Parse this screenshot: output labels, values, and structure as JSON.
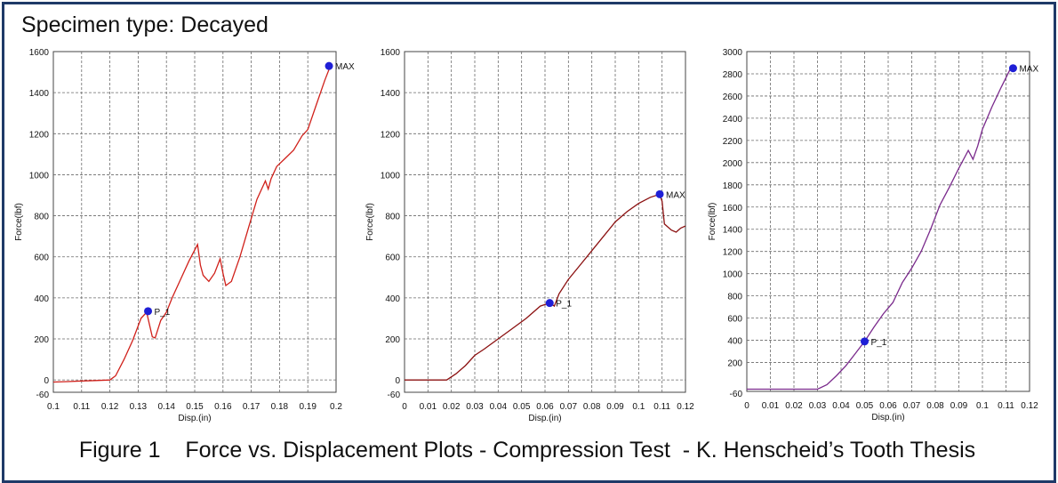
{
  "header": {
    "title": "Specimen type: Decayed"
  },
  "caption": {
    "text": "Figure 1    Force vs. Displacement Plots - Compression Test  - K. Henscheid’s Tooth Thesis"
  },
  "chart_data": [
    {
      "type": "line",
      "xlabel": "Disp.(in)",
      "ylabel": "Force(lbf)",
      "xlim": [
        0.1,
        0.2
      ],
      "ylim": [
        -60,
        1600
      ],
      "xticks": [
        "0.1",
        "0.11",
        "0.12",
        "0.13",
        "0.14",
        "0.15",
        "0.16",
        "0.17",
        "0.18",
        "0.19",
        "0.2"
      ],
      "yticks": [
        "-60",
        "0",
        "200",
        "400",
        "600",
        "800",
        "1000",
        "1200",
        "1400",
        "1600"
      ],
      "grid": true,
      "line_color": "#d0201a",
      "series": [
        {
          "x": [
            0.1,
            0.105,
            0.11,
            0.115,
            0.12,
            0.122,
            0.125,
            0.128,
            0.131,
            0.133,
            0.135,
            0.136,
            0.138,
            0.14,
            0.142,
            0.145,
            0.148,
            0.151,
            0.152,
            0.153,
            0.155,
            0.157,
            0.159,
            0.16,
            0.161,
            0.163,
            0.166,
            0.169,
            0.172,
            0.175,
            0.176,
            0.177,
            0.179,
            0.182,
            0.185,
            0.188,
            0.19,
            0.193,
            0.196,
            0.198
          ],
          "y": [
            -10,
            -8,
            -5,
            -3,
            0,
            20,
            100,
            190,
            300,
            330,
            210,
            205,
            290,
            330,
            400,
            490,
            580,
            660,
            560,
            510,
            480,
            520,
            590,
            520,
            460,
            480,
            600,
            740,
            880,
            970,
            930,
            980,
            1040,
            1080,
            1120,
            1190,
            1220,
            1340,
            1460,
            1530
          ]
        }
      ],
      "markers": [
        {
          "label": "P_1",
          "x": 0.1335,
          "y": 335
        },
        {
          "label": "MAX",
          "x": 0.1975,
          "y": 1530
        }
      ]
    },
    {
      "type": "line",
      "xlabel": "Disp.(in)",
      "ylabel": "Force(lbf)",
      "xlim": [
        0,
        0.12
      ],
      "ylim": [
        -60,
        1600
      ],
      "xticks": [
        "0",
        "0.01",
        "0.02",
        "0.03",
        "0.04",
        "0.05",
        "0.06",
        "0.07",
        "0.08",
        "0.09",
        "0.1",
        "0.11",
        "0.12"
      ],
      "yticks": [
        "-60",
        "0",
        "200",
        "400",
        "600",
        "800",
        "1000",
        "1200",
        "1400",
        "1600"
      ],
      "grid": true,
      "line_color": "#8b1010",
      "series": [
        {
          "x": [
            0,
            0.01,
            0.018,
            0.022,
            0.026,
            0.03,
            0.034,
            0.04,
            0.046,
            0.052,
            0.058,
            0.062,
            0.064,
            0.066,
            0.07,
            0.075,
            0.08,
            0.085,
            0.09,
            0.095,
            0.1,
            0.105,
            0.109,
            0.11,
            0.111,
            0.114,
            0.116,
            0.118,
            0.12
          ],
          "y": [
            0,
            0,
            0,
            30,
            70,
            120,
            150,
            200,
            250,
            300,
            360,
            375,
            360,
            420,
            490,
            560,
            630,
            700,
            770,
            820,
            860,
            890,
            905,
            870,
            760,
            730,
            720,
            740,
            750
          ]
        }
      ],
      "markers": [
        {
          "label": "P_1",
          "x": 0.062,
          "y": 375
        },
        {
          "label": "MAX",
          "x": 0.109,
          "y": 905
        }
      ]
    },
    {
      "type": "line",
      "xlabel": "Disp.(in)",
      "ylabel": "Force(lbf)",
      "xlim": [
        0,
        0.12
      ],
      "ylim": [
        -60,
        3000
      ],
      "xticks": [
        "0",
        "0.01",
        "0.02",
        "0.03",
        "0.04",
        "0.05",
        "0.06",
        "0.07",
        "0.08",
        "0.09",
        "0.1",
        "0.11",
        "0.12"
      ],
      "yticks": [
        "-60",
        "200",
        "400",
        "600",
        "800",
        "1000",
        "1200",
        "1400",
        "1600",
        "1800",
        "2000",
        "2200",
        "2400",
        "2600",
        "2800",
        "3000"
      ],
      "grid": true,
      "line_color": "#7a2a8c",
      "series": [
        {
          "x": [
            0,
            0.01,
            0.02,
            0.03,
            0.034,
            0.038,
            0.042,
            0.046,
            0.05,
            0.054,
            0.058,
            0.062,
            0.066,
            0.07,
            0.074,
            0.078,
            0.082,
            0.086,
            0.09,
            0.094,
            0.096,
            0.098,
            0.1,
            0.104,
            0.108,
            0.112
          ],
          "y": [
            -40,
            -40,
            -40,
            -40,
            0,
            80,
            170,
            280,
            390,
            520,
            640,
            740,
            920,
            1050,
            1200,
            1400,
            1620,
            1780,
            1950,
            2110,
            2030,
            2150,
            2300,
            2500,
            2680,
            2850
          ]
        }
      ],
      "markers": [
        {
          "label": "P_1",
          "x": 0.05,
          "y": 390
        },
        {
          "label": "MAX",
          "x": 0.113,
          "y": 2850
        }
      ]
    }
  ]
}
